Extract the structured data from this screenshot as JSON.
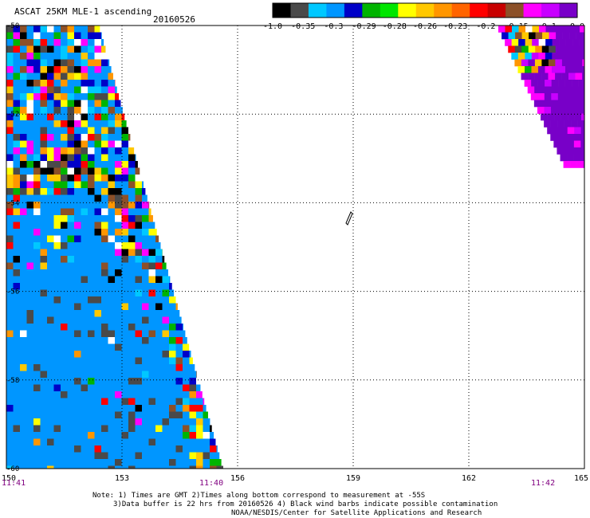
{
  "header": {
    "title": "ASCAT 25KM MLE-1 ascending",
    "date": "20160526"
  },
  "legend": {
    "colors": [
      "#000000",
      "#4a4a4a",
      "#00c8ff",
      "#0096ff",
      "#0000c8",
      "#00b400",
      "#00e600",
      "#ffff00",
      "#ffc800",
      "#ff9600",
      "#ff6400",
      "#ff0000",
      "#c80000",
      "#8c5028",
      "#ff00ff",
      "#c800ff",
      "#7800c8"
    ],
    "labels": [
      "-1.0",
      "-0.35",
      "-0.3",
      "-0.29",
      "-0.28",
      "-0.26",
      "-0.23",
      "-0.2",
      "-0.15",
      "-0.1",
      "0.0"
    ]
  },
  "lat_labels": [
    "-50",
    "-52",
    "-54",
    "-56",
    "-58",
    "-60"
  ],
  "lon_labels": [
    "150",
    "153",
    "156",
    "159",
    "162",
    "165"
  ],
  "times": {
    "left": "11:41",
    "middle": "11:40",
    "right": "11:42"
  },
  "notes": {
    "line1": "Note: 1) Times are GMT 2)Times along bottom correspond to measurement at -55S",
    "line2": "3)Data buffer is 22 hrs from 20160526 4) Black wind barbs indicate possible contamination",
    "line3": "NOAA/NESDIS/Center for Satellite Applications and Research"
  },
  "map": {
    "lat_range": [
      -60,
      -50
    ],
    "lon_range": [
      150,
      165
    ],
    "grid": "dotted",
    "swath_colors": {
      "dominant": "#0096ff",
      "mixed": [
        "#ff0000",
        "#ffff00",
        "#ff9600",
        "#00c8ff",
        "#0000c8",
        "#00b400",
        "#4a4a4a",
        "#8c5028",
        "#ffc800",
        "#ffffff",
        "#ff00ff",
        "#000000"
      ],
      "east": [
        "#7800c8",
        "#c800ff",
        "#ff00ff"
      ]
    }
  }
}
